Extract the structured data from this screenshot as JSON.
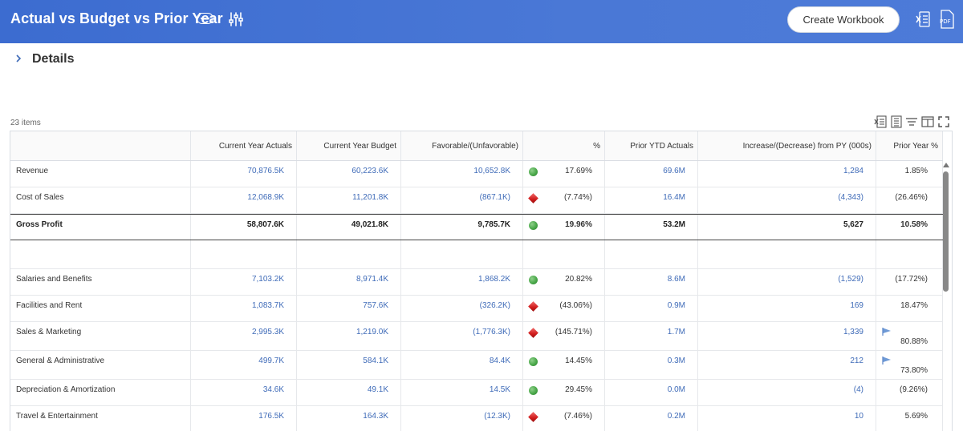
{
  "header": {
    "title": "Actual vs Budget vs Prior Year",
    "create_label": "Create Workbook",
    "pdf_label": "PDF"
  },
  "details": {
    "title": "Details"
  },
  "grid": {
    "items_count": "23 items",
    "columns": [
      "Current Year Actuals",
      "Current Year Budget",
      "Favorable/(Unfavorable)",
      "%",
      "Prior YTD Actuals",
      "Increase/(Decrease) from PY (000s)",
      "Prior Year %"
    ],
    "rows": [
      {
        "label": "Revenue",
        "cya": "70,876.5K",
        "cyb": "60,223.6K",
        "fav": "10,652.8K",
        "status": "green",
        "pct": "17.69%",
        "pya": "69.6M",
        "inc": "1,284",
        "pyp": "1.85%",
        "flag": false
      },
      {
        "label": "Cost of Sales",
        "cya": "12,068.9K",
        "cyb": "11,201.8K",
        "fav": "(867.1K)",
        "status": "red",
        "pct": "(7.74%)",
        "pya": "16.4M",
        "inc": "(4,343)",
        "pyp": "(26.46%)",
        "flag": false
      },
      {
        "label": "Gross Profit",
        "cya": "58,807.6K",
        "cyb": "49,021.8K",
        "fav": "9,785.7K",
        "status": "green",
        "pct": "19.96%",
        "pya": "53.2M",
        "inc": "5,627",
        "pyp": "10.58%",
        "flag": false
      },
      {
        "label": "",
        "cya": "",
        "cyb": "",
        "fav": "",
        "status": "",
        "pct": "",
        "pya": "",
        "inc": "",
        "pyp": "",
        "flag": false
      },
      {
        "label": "Salaries and Benefits",
        "cya": "7,103.2K",
        "cyb": "8,971.4K",
        "fav": "1,868.2K",
        "status": "green",
        "pct": "20.82%",
        "pya": "8.6M",
        "inc": "(1,529)",
        "pyp": "(17.72%)",
        "flag": false
      },
      {
        "label": "Facilities and Rent",
        "cya": "1,083.7K",
        "cyb": "757.6K",
        "fav": "(326.2K)",
        "status": "red",
        "pct": "(43.06%)",
        "pya": "0.9M",
        "inc": "169",
        "pyp": "18.47%",
        "flag": false
      },
      {
        "label": "Sales & Marketing",
        "cya": "2,995.3K",
        "cyb": "1,219.0K",
        "fav": "(1,776.3K)",
        "status": "red",
        "pct": "(145.71%)",
        "pya": "1.7M",
        "inc": "1,339",
        "pyp": "80.88%",
        "flag": true
      },
      {
        "label": "General & Administrative",
        "cya": "499.7K",
        "cyb": "584.1K",
        "fav": "84.4K",
        "status": "green",
        "pct": "14.45%",
        "pya": "0.3M",
        "inc": "212",
        "pyp": "73.80%",
        "flag": true
      },
      {
        "label": "Depreciation & Amortization",
        "cya": "34.6K",
        "cyb": "49.1K",
        "fav": "14.5K",
        "status": "green",
        "pct": "29.45%",
        "pya": "0.0M",
        "inc": "(4)",
        "pyp": "(9.26%)",
        "flag": false
      },
      {
        "label": "Travel & Entertainment",
        "cya": "176.5K",
        "cyb": "164.3K",
        "fav": "(12.3K)",
        "status": "red",
        "pct": "(7.46%)",
        "pya": "0.2M",
        "inc": "10",
        "pyp": "5.69%",
        "flag": false
      }
    ]
  },
  "colors": {
    "header_bg": "#4a78d6",
    "link_blue": "#3f6bb8",
    "favorable": "#4aa84a",
    "unfavorable": "#d01c1c",
    "flag": "#6f9ad6"
  }
}
